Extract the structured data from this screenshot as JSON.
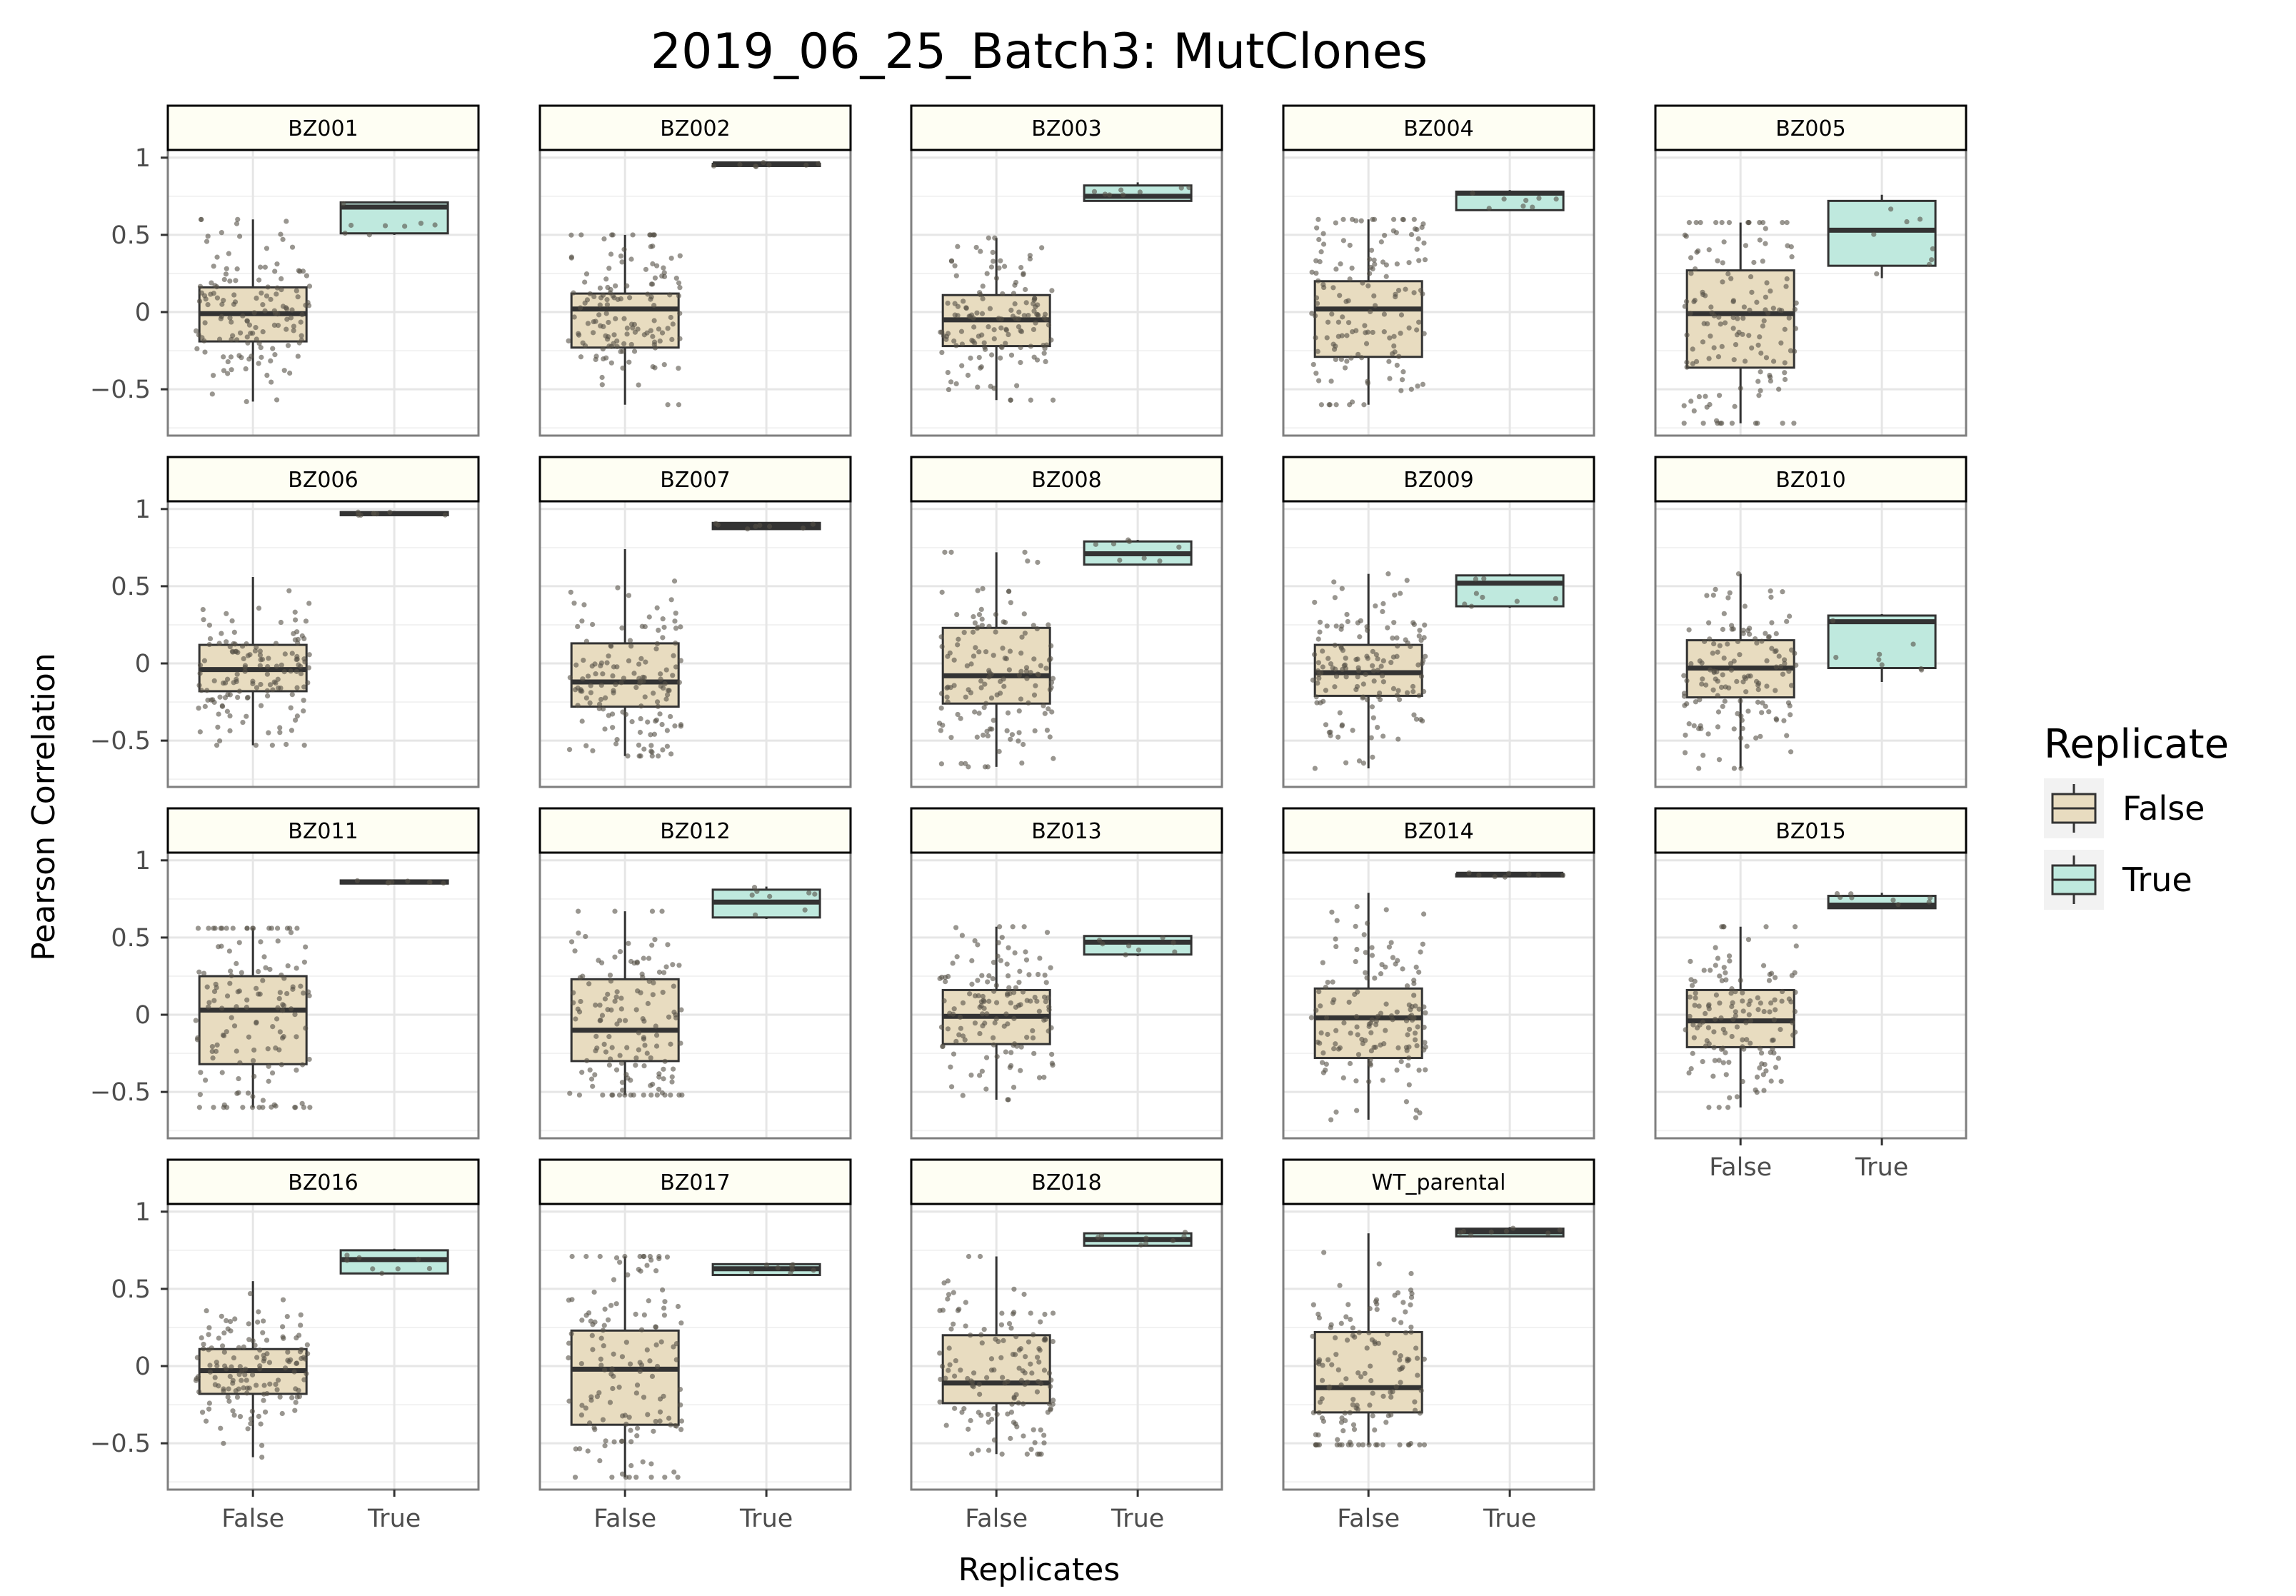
{
  "chart_data": {
    "type": "box",
    "title": "2019_06_25_Batch3: MutClones",
    "xlabel": "Replicates",
    "ylabel": "Pearson Correlation",
    "categories": [
      "False",
      "True"
    ],
    "y_ticks": [
      -0.5,
      0,
      0.5,
      1
    ],
    "y_tick_labels": [
      "−0.5",
      "0",
      "0.5",
      "1"
    ],
    "ylim": [
      -0.8,
      1.05
    ],
    "grid": true,
    "legend": {
      "title": "Replicate",
      "position": "right",
      "entries": [
        {
          "label": "False",
          "color": "#e8dcc0"
        },
        {
          "label": "True",
          "color": "#bfe9de"
        }
      ]
    },
    "colors": {
      "False": "#e8dcc0",
      "True": "#bfe9de",
      "strip": "#fefef3",
      "panel_border": "#7f7f7f",
      "points": "#555046",
      "grid": "#e6e6e6"
    },
    "panels": [
      {
        "name": "BZ001",
        "false": {
          "min": -0.58,
          "q1": -0.19,
          "median": -0.01,
          "q3": 0.16,
          "max": 0.6
        },
        "true": {
          "min": 0.5,
          "q1": 0.51,
          "median": 0.68,
          "q3": 0.71,
          "max": 0.72
        }
      },
      {
        "name": "BZ002",
        "false": {
          "min": -0.6,
          "q1": -0.23,
          "median": 0.02,
          "q3": 0.12,
          "max": 0.5
        },
        "true": {
          "min": 0.94,
          "q1": 0.95,
          "median": 0.96,
          "q3": 0.96,
          "max": 0.97
        }
      },
      {
        "name": "BZ003",
        "false": {
          "min": -0.57,
          "q1": -0.22,
          "median": -0.05,
          "q3": 0.11,
          "max": 0.48
        },
        "true": {
          "min": 0.72,
          "q1": 0.72,
          "median": 0.75,
          "q3": 0.82,
          "max": 0.84
        }
      },
      {
        "name": "BZ004",
        "false": {
          "min": -0.6,
          "q1": -0.29,
          "median": 0.02,
          "q3": 0.2,
          "max": 0.6
        },
        "true": {
          "min": 0.66,
          "q1": 0.66,
          "median": 0.77,
          "q3": 0.78,
          "max": 0.79
        }
      },
      {
        "name": "BZ005",
        "false": {
          "min": -0.72,
          "q1": -0.36,
          "median": -0.01,
          "q3": 0.27,
          "max": 0.58
        },
        "true": {
          "min": 0.22,
          "q1": 0.3,
          "median": 0.53,
          "q3": 0.72,
          "max": 0.76
        }
      },
      {
        "name": "BZ006",
        "false": {
          "min": -0.53,
          "q1": -0.18,
          "median": -0.04,
          "q3": 0.12,
          "max": 0.56
        },
        "true": {
          "min": 0.96,
          "q1": 0.96,
          "median": 0.97,
          "q3": 0.98,
          "max": 0.98
        }
      },
      {
        "name": "BZ007",
        "false": {
          "min": -0.6,
          "q1": -0.28,
          "median": -0.12,
          "q3": 0.13,
          "max": 0.74
        },
        "true": {
          "min": 0.87,
          "q1": 0.87,
          "median": 0.89,
          "q3": 0.91,
          "max": 0.91
        }
      },
      {
        "name": "BZ008",
        "false": {
          "min": -0.67,
          "q1": -0.26,
          "median": -0.08,
          "q3": 0.23,
          "max": 0.72
        },
        "true": {
          "min": 0.64,
          "q1": 0.64,
          "median": 0.71,
          "q3": 0.79,
          "max": 0.8
        }
      },
      {
        "name": "BZ009",
        "false": {
          "min": -0.68,
          "q1": -0.21,
          "median": -0.06,
          "q3": 0.12,
          "max": 0.58
        },
        "true": {
          "min": 0.36,
          "q1": 0.37,
          "median": 0.52,
          "q3": 0.57,
          "max": 0.58
        }
      },
      {
        "name": "BZ010",
        "false": {
          "min": -0.68,
          "q1": -0.22,
          "median": -0.03,
          "q3": 0.15,
          "max": 0.58
        },
        "true": {
          "min": -0.12,
          "q1": -0.03,
          "median": 0.27,
          "q3": 0.31,
          "max": 0.32
        }
      },
      {
        "name": "BZ011",
        "false": {
          "min": -0.6,
          "q1": -0.32,
          "median": 0.03,
          "q3": 0.25,
          "max": 0.56
        },
        "true": {
          "min": 0.85,
          "q1": 0.85,
          "median": 0.86,
          "q3": 0.87,
          "max": 0.87
        }
      },
      {
        "name": "BZ012",
        "false": {
          "min": -0.52,
          "q1": -0.3,
          "median": -0.1,
          "q3": 0.23,
          "max": 0.67
        },
        "true": {
          "min": 0.62,
          "q1": 0.63,
          "median": 0.73,
          "q3": 0.81,
          "max": 0.83
        }
      },
      {
        "name": "BZ013",
        "false": {
          "min": -0.55,
          "q1": -0.19,
          "median": -0.01,
          "q3": 0.16,
          "max": 0.57
        },
        "true": {
          "min": 0.38,
          "q1": 0.39,
          "median": 0.47,
          "q3": 0.51,
          "max": 0.51
        }
      },
      {
        "name": "BZ014",
        "false": {
          "min": -0.68,
          "q1": -0.28,
          "median": -0.02,
          "q3": 0.17,
          "max": 0.79
        },
        "true": {
          "min": 0.89,
          "q1": 0.9,
          "median": 0.91,
          "q3": 0.91,
          "max": 0.92
        }
      },
      {
        "name": "BZ015",
        "false": {
          "min": -0.6,
          "q1": -0.21,
          "median": -0.04,
          "q3": 0.16,
          "max": 0.57
        },
        "true": {
          "min": 0.69,
          "q1": 0.69,
          "median": 0.71,
          "q3": 0.77,
          "max": 0.79
        }
      },
      {
        "name": "BZ016",
        "false": {
          "min": -0.59,
          "q1": -0.18,
          "median": -0.03,
          "q3": 0.11,
          "max": 0.55
        },
        "true": {
          "min": 0.6,
          "q1": 0.6,
          "median": 0.69,
          "q3": 0.75,
          "max": 0.76
        }
      },
      {
        "name": "BZ017",
        "false": {
          "min": -0.72,
          "q1": -0.38,
          "median": -0.02,
          "q3": 0.23,
          "max": 0.71
        },
        "true": {
          "min": 0.59,
          "q1": 0.59,
          "median": 0.63,
          "q3": 0.66,
          "max": 0.66
        }
      },
      {
        "name": "BZ018",
        "false": {
          "min": -0.57,
          "q1": -0.24,
          "median": -0.11,
          "q3": 0.2,
          "max": 0.71
        },
        "true": {
          "min": 0.78,
          "q1": 0.78,
          "median": 0.82,
          "q3": 0.86,
          "max": 0.87
        }
      },
      {
        "name": "WT_parental",
        "false": {
          "min": -0.51,
          "q1": -0.3,
          "median": -0.14,
          "q3": 0.22,
          "max": 0.86
        },
        "true": {
          "min": 0.84,
          "q1": 0.84,
          "median": 0.87,
          "q3": 0.89,
          "max": 0.9
        }
      }
    ]
  }
}
